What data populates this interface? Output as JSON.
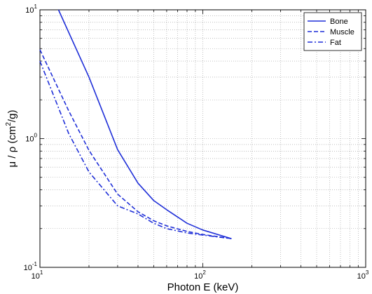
{
  "chart_data": {
    "type": "line",
    "xlabel": "Photon E (keV)",
    "ylabel": {
      "base": "μ / ρ (cm",
      "sup": "2",
      "rest": "/g)"
    },
    "x_scale": "log",
    "y_scale": "log",
    "xlim": [
      10,
      1000
    ],
    "ylim": [
      0.1,
      10
    ],
    "x_ticks": [
      {
        "value": 10,
        "base": "10",
        "exp": "1"
      },
      {
        "value": 100,
        "base": "10",
        "exp": "2"
      },
      {
        "value": 1000,
        "base": "10",
        "exp": "3"
      }
    ],
    "y_ticks": [
      {
        "value": 0.1,
        "base": "10",
        "exp": "-1"
      },
      {
        "value": 1,
        "base": "10",
        "exp": "0"
      },
      {
        "value": 10,
        "base": "10",
        "exp": "1"
      }
    ],
    "grid": true,
    "legend_position": "top-right",
    "series": [
      {
        "name": "Bone",
        "style": "solid",
        "color": "#1f2fd8",
        "x": [
          13,
          20,
          30,
          40,
          50,
          60,
          80,
          100,
          150
        ],
        "y": [
          10,
          3.0,
          0.82,
          0.45,
          0.33,
          0.28,
          0.22,
          0.195,
          0.167
        ]
      },
      {
        "name": "Muscle",
        "style": "dashed",
        "color": "#1f2fd8",
        "x": [
          10,
          15,
          20,
          30,
          40,
          50,
          60,
          80,
          100,
          150
        ],
        "y": [
          4.9,
          1.65,
          0.81,
          0.37,
          0.27,
          0.23,
          0.21,
          0.19,
          0.18,
          0.167
        ]
      },
      {
        "name": "Fat",
        "style": "dashdot",
        "color": "#1f2fd8",
        "x": [
          10,
          15,
          20,
          30,
          40,
          50,
          60,
          80,
          100,
          150
        ],
        "y": [
          4.0,
          1.1,
          0.55,
          0.3,
          0.26,
          0.22,
          0.2,
          0.185,
          0.178,
          0.167
        ]
      }
    ]
  }
}
